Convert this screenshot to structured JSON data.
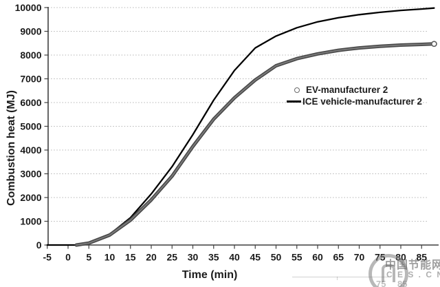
{
  "chart_data": {
    "type": "line",
    "title": "",
    "xlabel": "Time (min)",
    "ylabel": "Combustion heat (MJ)",
    "xlim": [
      -5,
      88
    ],
    "ylim": [
      0,
      10000
    ],
    "xticks": [
      -5,
      0,
      5,
      10,
      15,
      20,
      25,
      30,
      35,
      40,
      45,
      50,
      55,
      60,
      65,
      70,
      75,
      80,
      85
    ],
    "yticks": [
      0,
      1000,
      2000,
      3000,
      4000,
      5000,
      6000,
      7000,
      8000,
      9000,
      10000
    ],
    "grid": "horizontal dotted",
    "legend_position": "middle-right",
    "x": [
      -5,
      0,
      2,
      5,
      10,
      15,
      20,
      25,
      30,
      35,
      40,
      45,
      50,
      55,
      60,
      65,
      70,
      75,
      80,
      85,
      88
    ],
    "series": [
      {
        "name": "EV-manufacturer 2",
        "marker": "open-circle",
        "color": "#4d4d4d",
        "values": [
          null,
          null,
          0,
          80,
          420,
          1050,
          1900,
          2900,
          4150,
          5300,
          6200,
          6950,
          7550,
          7850,
          8050,
          8200,
          8300,
          8370,
          8420,
          8450,
          8470
        ]
      },
      {
        "name": "ICE vehicle-manufacturer 2",
        "marker": "solid-line",
        "color": "#000000",
        "values": [
          0,
          0,
          0,
          90,
          450,
          1150,
          2150,
          3300,
          4650,
          6100,
          7350,
          8300,
          8800,
          9150,
          9400,
          9570,
          9700,
          9800,
          9880,
          9940,
          9980
        ]
      }
    ]
  },
  "watermark": {
    "line1": "中国节能网",
    "line2": "C E S . C N",
    "ghost_labels": [
      "75",
      "85"
    ]
  }
}
